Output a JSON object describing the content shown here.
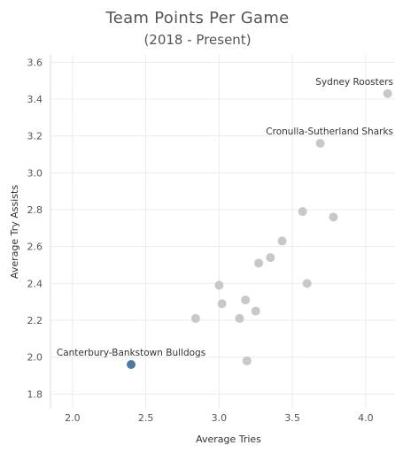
{
  "chart_data": {
    "type": "scatter",
    "title": "Team Points Per Game",
    "subtitle": "(2018 - Present)",
    "xlabel": "Average Tries",
    "ylabel": "Average Try Assists",
    "xlim": [
      1.85,
      4.2
    ],
    "ylim": [
      1.72,
      3.64
    ],
    "xticks": [
      "2.0",
      "2.5",
      "3.0",
      "3.5",
      "4.0"
    ],
    "yticks": [
      "1.8",
      "2.0",
      "2.2",
      "2.4",
      "2.6",
      "2.8",
      "3.0",
      "3.2",
      "3.4",
      "3.6"
    ],
    "grid": true,
    "colors": {
      "highlight": "#4e79a7",
      "default": "#c8c8c8"
    },
    "points": [
      {
        "x": 4.15,
        "y": 3.43,
        "label": "Sydney Roosters"
      },
      {
        "x": 3.69,
        "y": 3.16,
        "label": "Cronulla-Sutherland Sharks"
      },
      {
        "x": 3.57,
        "y": 2.79
      },
      {
        "x": 3.78,
        "y": 2.76
      },
      {
        "x": 3.43,
        "y": 2.63
      },
      {
        "x": 3.35,
        "y": 2.54
      },
      {
        "x": 3.27,
        "y": 2.51
      },
      {
        "x": 3.6,
        "y": 2.4
      },
      {
        "x": 3.0,
        "y": 2.39
      },
      {
        "x": 3.18,
        "y": 2.31
      },
      {
        "x": 3.02,
        "y": 2.29
      },
      {
        "x": 3.25,
        "y": 2.25
      },
      {
        "x": 2.84,
        "y": 2.21
      },
      {
        "x": 3.14,
        "y": 2.21
      },
      {
        "x": 3.19,
        "y": 1.98
      },
      {
        "x": 2.4,
        "y": 1.96,
        "label": "Canterbury-Bankstown Bulldogs",
        "highlight": true
      }
    ]
  }
}
